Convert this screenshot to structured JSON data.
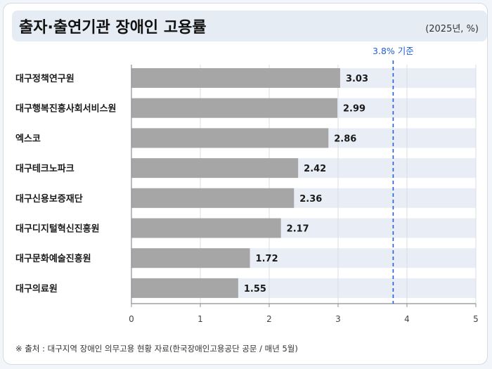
{
  "header": {
    "title": "출자·출연기관 장애인 고용률",
    "unit": "(2025년, %)"
  },
  "chart_data": {
    "type": "bar",
    "orientation": "horizontal",
    "categories": [
      "대구정책연구원",
      "대구행복진흥사회서비스원",
      "엑스코",
      "대구테크노파크",
      "대구신용보증재단",
      "대구디지털혁신진흥원",
      "대구문화예술진흥원",
      "대구의료원"
    ],
    "values": [
      3.03,
      2.99,
      2.86,
      2.42,
      2.36,
      2.17,
      1.72,
      1.55
    ],
    "value_labels": [
      "3.03",
      "2.99",
      "2.86",
      "2.42",
      "2.36",
      "2.17",
      "1.72",
      "1.55"
    ],
    "xlim": [
      0,
      5
    ],
    "x_ticks": [
      "0",
      "1",
      "2",
      "3",
      "4",
      "5"
    ],
    "reference_line": {
      "value": 3.8,
      "label": "3.8% 기준"
    },
    "grid": true,
    "colors": {
      "bar": "#a6a6a6",
      "track": "#e9eef6",
      "reference": "#1f5fd1",
      "gridline": "#d9dee6",
      "axis": "#8a9099"
    }
  },
  "footer": {
    "source": "※ 출처 : 대구지역 장애인 의무고용 현황 자료(한국장애인고용공단 공문 / 매년 5월)"
  }
}
